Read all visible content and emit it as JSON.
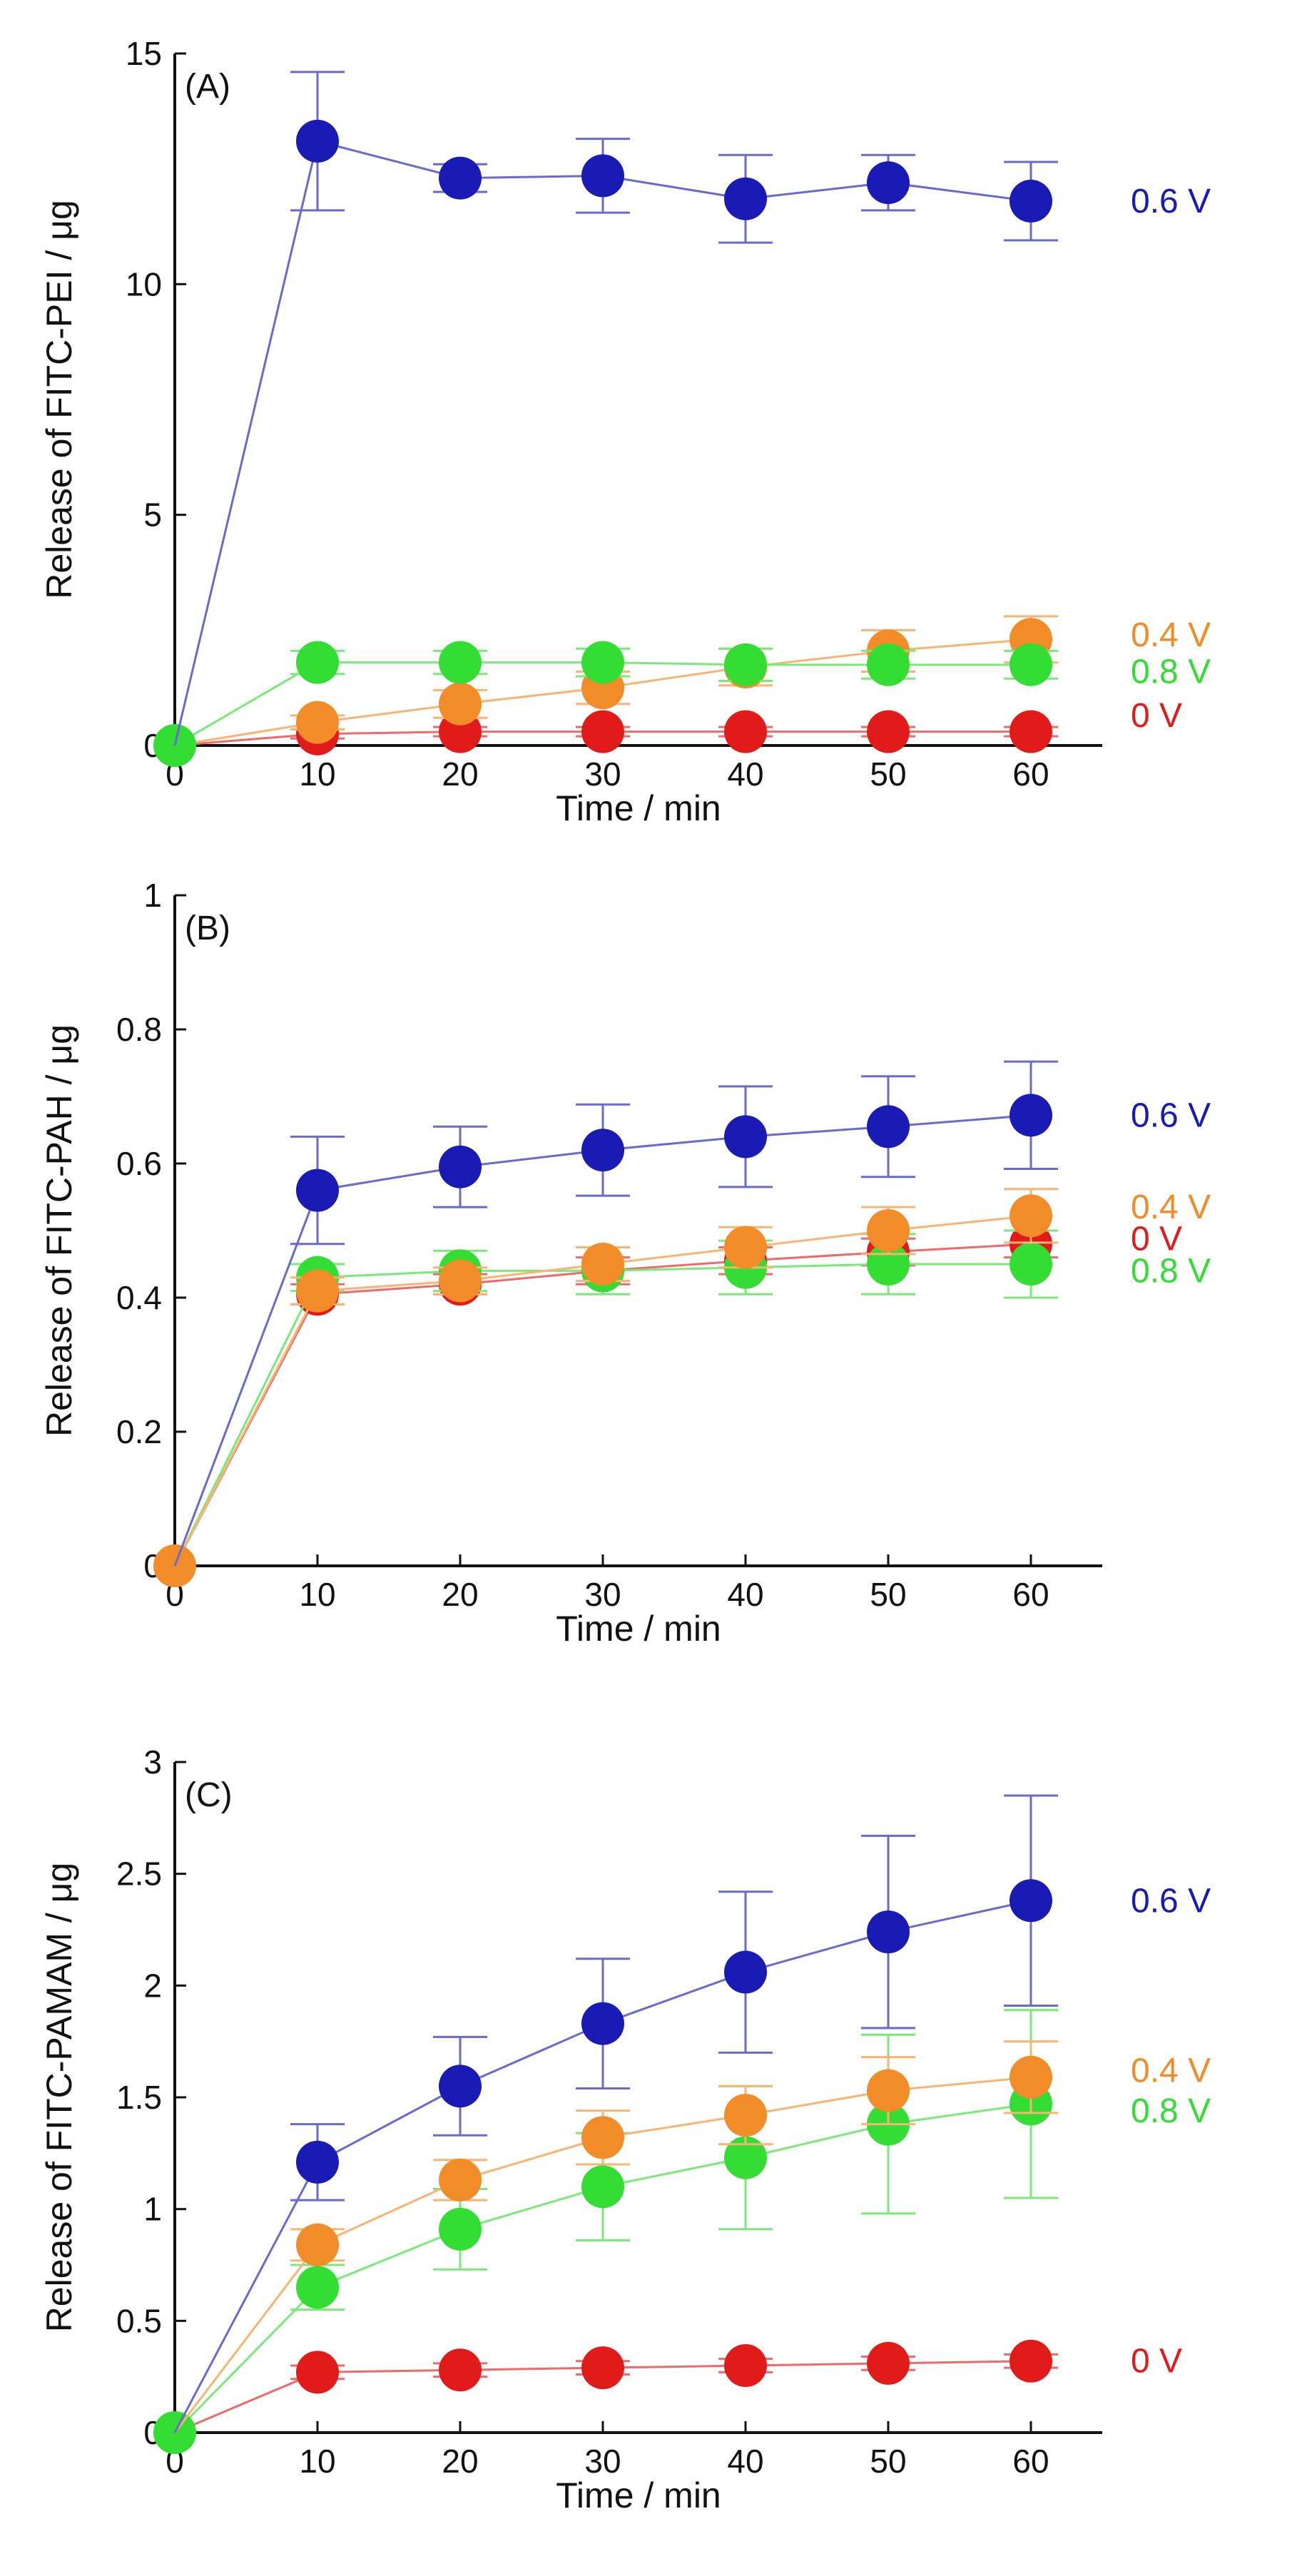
{
  "chart_data": [
    {
      "type": "line",
      "panel_label": "(A)",
      "title": "",
      "xlabel": "Time / min",
      "ylabel": "Release of FITC-PEI / μg",
      "xlim": [
        0,
        65
      ],
      "ylim": [
        0,
        15
      ],
      "xticks": [
        0,
        10,
        20,
        30,
        40,
        50,
        60
      ],
      "xtick_labels": [
        "0",
        "10",
        "20",
        "30",
        "40",
        "50",
        "60"
      ],
      "yticks": [
        0,
        5,
        10,
        15
      ],
      "ytick_labels": [
        "0",
        "5",
        "10",
        "15"
      ],
      "grid": false,
      "legend": "inline labels at right end of each series",
      "x": [
        0,
        10,
        20,
        30,
        40,
        50,
        60
      ],
      "series": [
        {
          "name": "0.6 V",
          "label": "0.6 V",
          "color": "#1a1ab4",
          "values": [
            0,
            13.1,
            12.3,
            12.35,
            11.85,
            12.2,
            11.8
          ],
          "errors": [
            0,
            1.5,
            0.3,
            0.8,
            0.95,
            0.6,
            0.85
          ],
          "label_value": 11.8
        },
        {
          "name": "0.4 V",
          "label": "0.4 V",
          "color": "#f28c28",
          "values": [
            0,
            0.5,
            0.9,
            1.25,
            1.7,
            2.05,
            2.3
          ],
          "errors": [
            0,
            0.15,
            0.3,
            0.35,
            0.4,
            0.45,
            0.5
          ],
          "label_value": 2.4
        },
        {
          "name": "0.8 V",
          "label": "0.8 V",
          "color": "#33dd33",
          "values": [
            0,
            1.8,
            1.8,
            1.8,
            1.75,
            1.75,
            1.75
          ],
          "errors": [
            0,
            0.25,
            0.25,
            0.3,
            0.35,
            0.3,
            0.3
          ],
          "label_value": 1.6
        },
        {
          "name": "0 V",
          "label": "0 V",
          "color": "#e11a1a",
          "values": [
            0,
            0.25,
            0.3,
            0.3,
            0.3,
            0.3,
            0.3
          ],
          "errors": [
            0,
            0.1,
            0.1,
            0.1,
            0.1,
            0.1,
            0.1
          ],
          "label_value": 0.65
        }
      ]
    },
    {
      "type": "line",
      "panel_label": "(B)",
      "title": "",
      "xlabel": "Time / min",
      "ylabel": "Release of FITC-PAH / μg",
      "xlim": [
        0,
        65
      ],
      "ylim": [
        0,
        1
      ],
      "xticks": [
        0,
        10,
        20,
        30,
        40,
        50,
        60
      ],
      "xtick_labels": [
        "0",
        "10",
        "20",
        "30",
        "40",
        "50",
        "60"
      ],
      "yticks": [
        0,
        0.2,
        0.4,
        0.6,
        0.8,
        1
      ],
      "ytick_labels": [
        "0",
        "0.2",
        "0.4",
        "0.6",
        "0.8",
        "1"
      ],
      "grid": false,
      "legend": "inline labels at right end of each series",
      "x": [
        0,
        10,
        20,
        30,
        40,
        50,
        60
      ],
      "series": [
        {
          "name": "0.6 V",
          "label": "0.6 V",
          "color": "#1a1ab4",
          "values": [
            0,
            0.56,
            0.595,
            0.62,
            0.64,
            0.655,
            0.672
          ],
          "errors": [
            0,
            0.08,
            0.06,
            0.068,
            0.075,
            0.075,
            0.08
          ],
          "label_value": 0.672
        },
        {
          "name": "0.4 V",
          "label": "0.4 V",
          "color": "#f28c28",
          "values": [
            0,
            0.41,
            0.425,
            0.45,
            0.475,
            0.5,
            0.522
          ],
          "errors": [
            0,
            0.02,
            0.02,
            0.025,
            0.03,
            0.035,
            0.04
          ],
          "label_value": 0.535
        },
        {
          "name": "0 V",
          "label": "0 V",
          "color": "#e11a1a",
          "values": [
            0,
            0.405,
            0.42,
            0.44,
            0.455,
            0.468,
            0.48
          ],
          "errors": [
            0,
            0.015,
            0.015,
            0.02,
            0.02,
            0.02,
            0.02
          ],
          "label_value": 0.488
        },
        {
          "name": "0.8 V",
          "label": "0.8 V",
          "color": "#33dd33",
          "values": [
            0,
            0.43,
            0.44,
            0.44,
            0.445,
            0.45,
            0.45
          ],
          "errors": [
            0,
            0.02,
            0.03,
            0.035,
            0.04,
            0.045,
            0.05
          ],
          "label_value": 0.44
        }
      ]
    },
    {
      "type": "line",
      "panel_label": "(C)",
      "title": "",
      "xlabel": "Time / min",
      "ylabel": "Release of FITC-PAMAM / μg",
      "xlim": [
        0,
        65
      ],
      "ylim": [
        0,
        3
      ],
      "xticks": [
        0,
        10,
        20,
        30,
        40,
        50,
        60
      ],
      "xtick_labels": [
        "0",
        "10",
        "20",
        "30",
        "40",
        "50",
        "60"
      ],
      "yticks": [
        0,
        0.5,
        1,
        1.5,
        2,
        2.5,
        3
      ],
      "ytick_labels": [
        "0",
        "0.5",
        "1",
        "1.5",
        "2",
        "2.5",
        "3"
      ],
      "grid": false,
      "legend": "inline labels at right end of each series",
      "x": [
        0,
        10,
        20,
        30,
        40,
        50,
        60
      ],
      "series": [
        {
          "name": "0.6 V",
          "label": "0.6 V",
          "color": "#1a1ab4",
          "values": [
            0,
            1.21,
            1.55,
            1.83,
            2.06,
            2.24,
            2.38
          ],
          "errors": [
            0,
            0.17,
            0.22,
            0.29,
            0.36,
            0.43,
            0.47
          ],
          "label_value": 2.38
        },
        {
          "name": "0.4 V",
          "label": "0.4 V",
          "color": "#f28c28",
          "values": [
            0,
            0.84,
            1.13,
            1.32,
            1.42,
            1.53,
            1.59
          ],
          "errors": [
            0,
            0.07,
            0.09,
            0.12,
            0.13,
            0.15,
            0.16
          ],
          "label_value": 1.62
        },
        {
          "name": "0.8 V",
          "label": "0.8 V",
          "color": "#33dd33",
          "values": [
            0,
            0.65,
            0.91,
            1.1,
            1.23,
            1.38,
            1.47
          ],
          "errors": [
            0,
            0.1,
            0.18,
            0.24,
            0.32,
            0.4,
            0.42
          ],
          "label_value": 1.44
        },
        {
          "name": "0 V",
          "label": "0 V",
          "color": "#e11a1a",
          "values": [
            0,
            0.27,
            0.28,
            0.29,
            0.3,
            0.31,
            0.32
          ],
          "errors": [
            0,
            0.03,
            0.03,
            0.03,
            0.03,
            0.03,
            0.03
          ],
          "label_value": 0.32
        }
      ]
    }
  ]
}
